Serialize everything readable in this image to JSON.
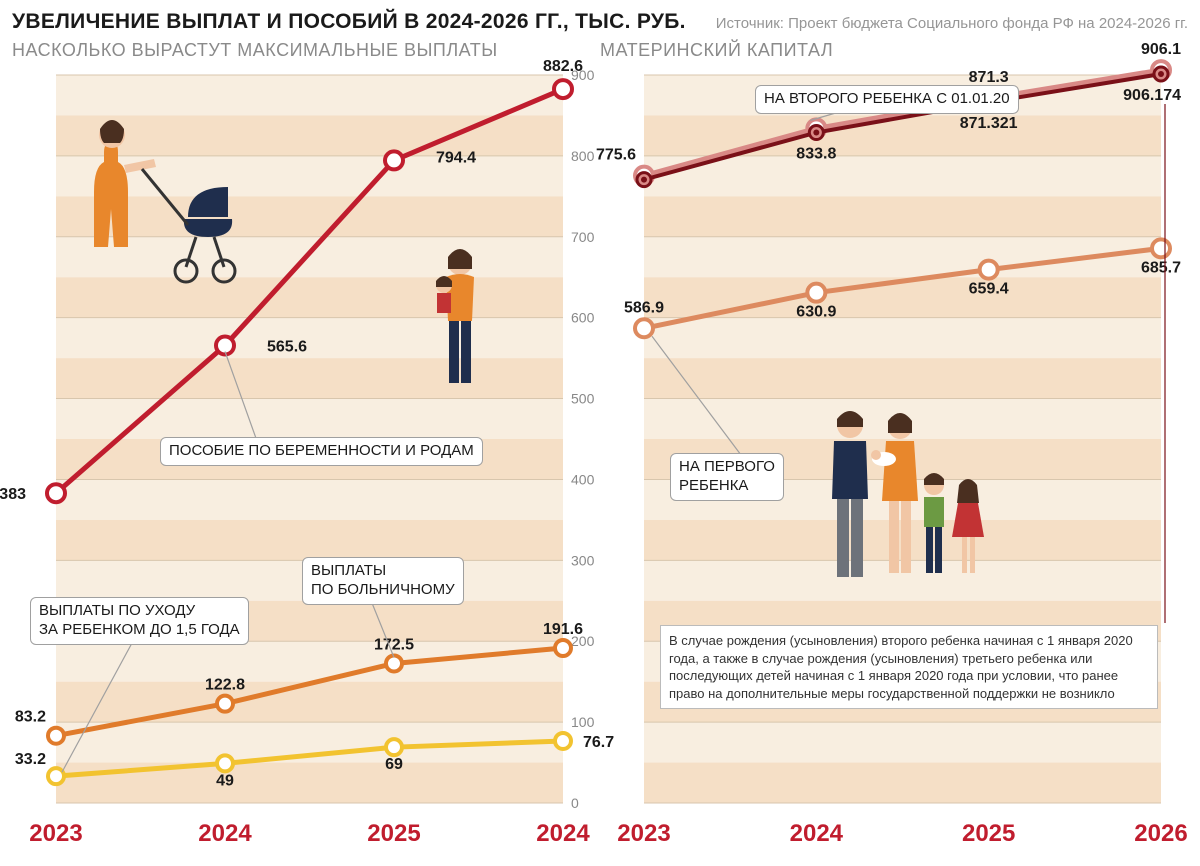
{
  "header": {
    "title": "УВЕЛИЧЕНИЕ ВЫПЛАТ И ПОСОБИЙ В 2024-2026 ГГ., ТЫС. РУБ.",
    "source": "Источник: Проект бюджета Социального фонда РФ на 2024-2026 гг."
  },
  "years": [
    "2023",
    "2024",
    "2025",
    "2026"
  ],
  "left": {
    "subtitle": "НАСКОЛЬКО ВЫРАСТУТ МАКСИМАЛЬНЫЕ ВЫПЛАТЫ",
    "x_wrong_last": "2024",
    "ylim": [
      0,
      900
    ],
    "ytick_step": 100,
    "bg_stripes": {
      "color1": "#f8eee0",
      "color2": "#f5dfc6"
    },
    "grid_color": "#d8c6ad",
    "axis_color": "#888",
    "series": {
      "maternity": {
        "label": "ПОСОБИЕ ПО БЕРЕМЕННОСТИ И РОДАМ",
        "color": "#c01d2e",
        "marker_fill": "#ffffff",
        "values": [
          383,
          565.6,
          794.4,
          882.6
        ],
        "labels": [
          "383",
          "565.6",
          "794.4",
          "882.6"
        ]
      },
      "sick": {
        "label": "ВЫПЛАТЫ\nПО БОЛЬНИЧНОМУ",
        "color": "#e07b2b",
        "marker_fill": "#ffffff",
        "values": [
          83.2,
          122.8,
          172.5,
          191.6
        ],
        "labels": [
          "83.2",
          "122.8",
          "172.5",
          "191.6"
        ]
      },
      "childcare": {
        "label": "ВЫПЛАТЫ ПО УХОДУ\nЗА РЕБЕНКОМ ДО 1,5 ГОДА",
        "color": "#f2c330",
        "marker_fill": "#ffffff",
        "values": [
          33.2,
          49,
          69,
          76.7
        ],
        "labels": [
          "33.2",
          "49",
          "69",
          "76.7"
        ]
      }
    },
    "year_color": "#c01d2e"
  },
  "right": {
    "subtitle": "МАТЕРИНСКИЙ КАПИТАЛ",
    "ylim": [
      0,
      900
    ],
    "ytick_step": 100,
    "series": {
      "second_a": {
        "label": "НА ВТОРОГО РЕБЕНКА С 01.01.20",
        "color": "#d98986",
        "marker_fill": "#ffffff",
        "values": [
          775.6,
          834,
          871.3,
          906.1
        ],
        "labels": [
          "775.6",
          "834",
          "871.3",
          "906.1"
        ]
      },
      "second_b": {
        "color": "#7a1018",
        "marker_fill": "#d98986",
        "values": [
          775.6,
          833.8,
          871.321,
          906.174
        ],
        "labels": [
          "",
          "833.8",
          "871.321",
          "906.174"
        ]
      },
      "first": {
        "label": "НА ПЕРВОГО\nРЕБЕНКА",
        "color": "#dd8a5f",
        "marker_fill": "#ffffff",
        "values": [
          586.9,
          630.9,
          659.4,
          685.7
        ],
        "labels": [
          "586.9",
          "630.9",
          "659.4",
          "685.7"
        ]
      }
    },
    "footnote": "В случае рождения (усыновления) второго ребенка начиная с 1 января 2020 года, а также в случае рождения (усыновления) третьего ребенка или последующих детей начиная с 1 января 2020 года при условии, что ранее право на дополнительные меры государственной поддержки не возникло",
    "year_color": "#c01d2e"
  },
  "illustration_colors": {
    "skin": "#f1c6a5",
    "hair": "#4a2f20",
    "orange_dress": "#e8872c",
    "navy": "#1f2e4d",
    "stroller_navy": "#1f2e4d",
    "green_shirt": "#6c9a43",
    "red_dress": "#c23334",
    "grey_pants": "#6d727a"
  },
  "typography": {
    "title_size": 21,
    "subtitle_size": 18,
    "axis_label_size": 14,
    "value_label_size": 15,
    "year_label_size": 24
  }
}
